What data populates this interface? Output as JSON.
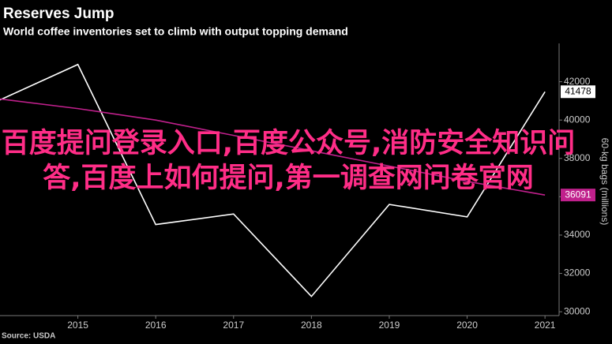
{
  "chart_data": {
    "type": "line",
    "title": "Reserves Jump",
    "subtitle": "World coffee inventories set to climb with output topping demand",
    "y_label": "60-kg bags (millions)",
    "source": "Source: USDA",
    "x": [
      2014,
      2015,
      2016,
      2017,
      2018,
      2019,
      2020,
      2021
    ],
    "series": [
      {
        "color": "#ffffff",
        "values": [
          41050,
          42900,
          34550,
          35100,
          30800,
          35600,
          34950,
          41478
        ]
      },
      {
        "color": "#c0208c",
        "values": [
          41100,
          40600,
          40000,
          39200,
          38400,
          37600,
          36800,
          36091
        ]
      }
    ],
    "xlim": [
      2014,
      2021.1
    ],
    "xticks": [
      2015,
      2016,
      2017,
      2018,
      2019,
      2020,
      2021
    ],
    "ylim": [
      29800,
      44000
    ],
    "yticks": [
      30000,
      32000,
      34000,
      36000,
      38000,
      40000,
      42000
    ],
    "grid": false
  },
  "overlay": {
    "text": "百度提问登录入口,百度公众号,消防安全知识问答,百度上如何提问,第一调查网问卷官网"
  }
}
